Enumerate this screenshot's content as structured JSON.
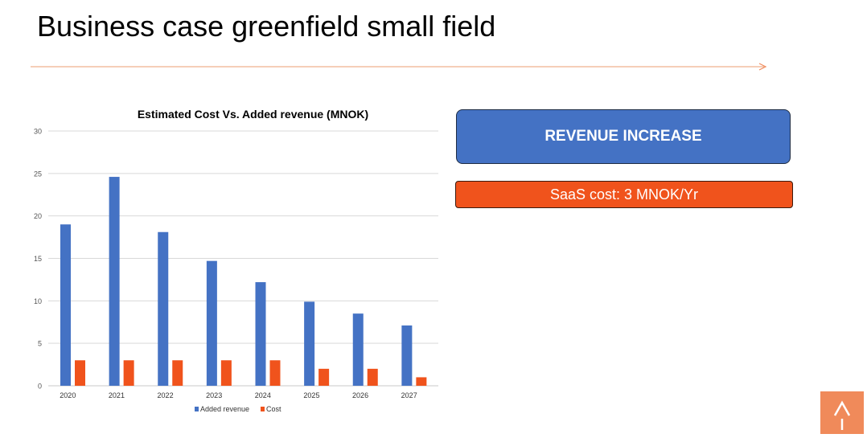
{
  "slide": {
    "title": "Business case greenfield small field"
  },
  "boxes": {
    "revenue_label": "REVENUE INCREASE",
    "cost_label": "SaaS cost: 3 MNOK/Yr"
  },
  "colors": {
    "accent_orange": "#f0531c",
    "accent_blue": "#4472c4",
    "logo_bg": "#f08a5a"
  },
  "logo": {
    "icon": "upward-arrow-logo-icon"
  },
  "chart_data": {
    "type": "bar",
    "title": "Estimated Cost Vs. Added revenue (MNOK)",
    "xlabel": "",
    "ylabel": "",
    "categories": [
      "2020",
      "2021",
      "2022",
      "2023",
      "2024",
      "2025",
      "2026",
      "2027"
    ],
    "series": [
      {
        "name": "Added revenue",
        "color": "#4472c4",
        "values": [
          19,
          24.6,
          18.1,
          14.7,
          12.2,
          9.9,
          8.5,
          7.1
        ]
      },
      {
        "name": "Cost",
        "color": "#f0531c",
        "values": [
          3,
          3,
          3,
          3,
          3,
          2,
          2,
          1
        ]
      }
    ],
    "ylim": [
      0,
      30
    ],
    "yticks": [
      0,
      5,
      10,
      15,
      20,
      25,
      30
    ],
    "grid": true,
    "legend": "bottom"
  }
}
